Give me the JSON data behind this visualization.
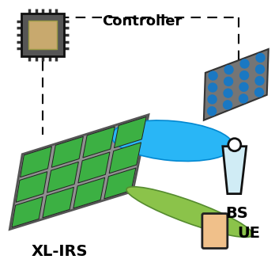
{
  "bg_color": "#ffffff",
  "controller_text": "Controller",
  "bs_text": "BS",
  "xlirs_text": "XL-IRS",
  "ue_text": "UE",
  "green_panel_color": "#3cb043",
  "panel_gray": "#909090",
  "panel_dark_gray": "#555555",
  "blue_beam_color": "#29b6f6",
  "blue_beam_edge": "#0288d1",
  "green_beam_color": "#8bc34a",
  "green_beam_edge": "#558b2f",
  "ue_fill": "#f0c08a",
  "ue_edge": "#222222",
  "chip_body": "#555555",
  "chip_inner": "#c8a96e",
  "chip_pin": "#333333",
  "dot_color": "#1a78c2",
  "cone_fill": "#d0ecf5",
  "cone_edge": "#111111",
  "dash_color": "#000000"
}
